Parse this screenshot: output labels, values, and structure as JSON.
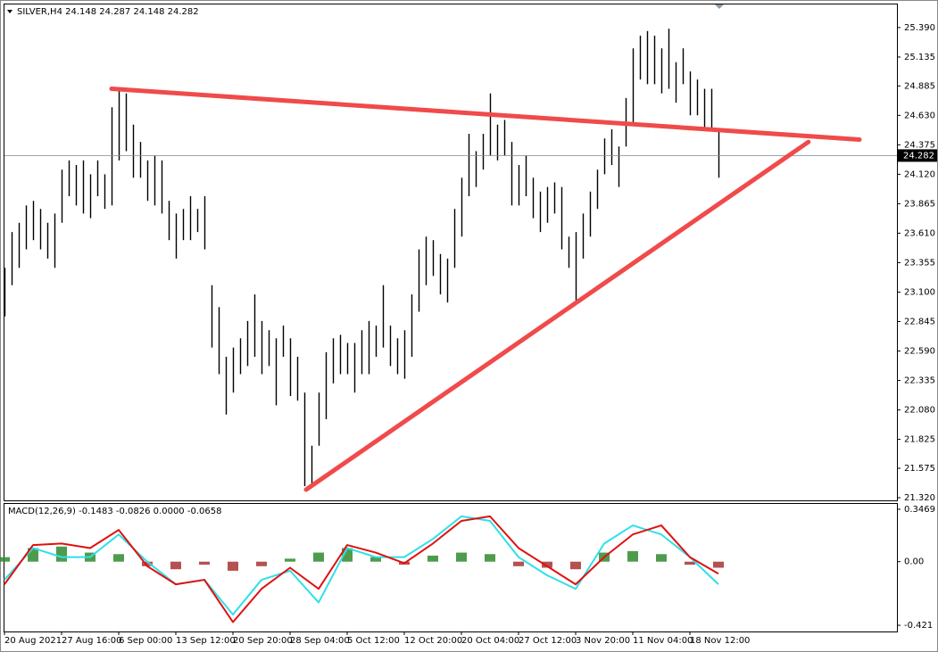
{
  "chart_data": [
    {
      "type": "ohlc",
      "title": "SILVER,H4  24.148 24.287 24.148 24.282",
      "high": [
        23.31,
        23.62,
        23.7,
        23.85,
        23.89,
        23.82,
        23.7,
        23.78,
        24.16,
        24.24,
        24.2,
        24.24,
        24.12,
        24.24,
        24.12,
        24.7,
        24.86,
        24.82,
        24.55,
        24.4,
        24.24,
        24.28,
        24.24,
        23.89,
        23.78,
        23.82,
        23.93,
        23.82,
        23.93,
        23.16,
        22.97,
        22.54,
        22.62,
        22.7,
        22.85,
        23.08,
        22.85,
        22.77,
        22.7,
        22.81,
        22.7,
        22.54,
        22.23,
        21.77,
        22.23,
        22.58,
        22.7,
        22.73,
        22.66,
        22.66,
        22.77,
        22.85,
        22.81,
        23.16,
        22.81,
        22.7,
        22.77,
        23.08,
        23.47,
        23.58,
        23.55,
        23.43,
        23.39,
        23.82,
        24.09,
        24.47,
        24.32,
        24.47,
        24.82,
        24.55,
        24.59,
        24.4,
        24.2,
        24.28,
        24.09,
        23.97,
        24.01,
        24.05,
        24.01,
        23.58,
        23.62,
        23.78,
        23.97,
        24.16,
        24.43,
        24.51,
        24.36,
        24.78,
        25.21,
        25.32,
        25.36,
        25.32,
        25.21,
        25.38,
        25.09,
        25.21,
        25.01,
        24.94,
        24.86,
        24.86,
        24.51
      ],
      "low": [
        22.89,
        23.16,
        23.31,
        23.47,
        23.55,
        23.47,
        23.39,
        23.31,
        23.7,
        23.93,
        23.85,
        23.78,
        23.74,
        23.93,
        23.82,
        23.85,
        24.24,
        24.32,
        24.09,
        24.09,
        23.89,
        23.85,
        23.78,
        23.55,
        23.39,
        23.55,
        23.55,
        23.62,
        23.47,
        22.62,
        22.39,
        22.04,
        22.23,
        22.39,
        22.46,
        22.54,
        22.39,
        22.46,
        22.12,
        22.54,
        22.2,
        22.16,
        21.42,
        21.42,
        21.77,
        22.0,
        22.31,
        22.39,
        22.39,
        22.23,
        22.39,
        22.39,
        22.54,
        22.62,
        22.46,
        22.39,
        22.35,
        22.54,
        22.93,
        23.16,
        23.24,
        23.08,
        23.01,
        23.31,
        23.58,
        23.93,
        24.01,
        24.16,
        24.28,
        24.24,
        24.28,
        23.85,
        23.85,
        23.93,
        23.74,
        23.62,
        23.7,
        23.78,
        23.47,
        23.31,
        23.01,
        23.39,
        23.58,
        23.82,
        24.12,
        24.2,
        24.01,
        24.36,
        24.55,
        24.94,
        24.9,
        24.9,
        24.82,
        24.86,
        24.74,
        24.9,
        24.63,
        24.63,
        24.51,
        24.51,
        24.09
      ],
      "color": "#000000",
      "last_price": 24.282,
      "trendlines": [
        {
          "x": [
            15,
            119.75
          ],
          "y": [
            24.86,
            24.42
          ]
        },
        {
          "x": [
            42.25,
            112.6
          ],
          "y": [
            21.39,
            24.4
          ]
        }
      ],
      "trendline_color": "#f04a4a",
      "xlim": [
        0,
        125
      ],
      "xticks": [
        {
          "value": 0,
          "label": "20 Aug 2021"
        },
        {
          "value": 8,
          "label": "27 Aug 16:00"
        },
        {
          "value": 16,
          "label": "6 Sep 00:00"
        },
        {
          "value": 24,
          "label": "13 Sep 12:00"
        },
        {
          "value": 32,
          "label": "20 Sep 20:00"
        },
        {
          "value": 40,
          "label": "28 Sep 04:00"
        },
        {
          "value": 48,
          "label": "5 Oct 12:00"
        },
        {
          "value": 56,
          "label": "12 Oct 20:00"
        },
        {
          "value": 64,
          "label": "20 Oct 04:00"
        },
        {
          "value": 72,
          "label": "27 Oct 12:00"
        },
        {
          "value": 80,
          "label": "3 Nov 20:00"
        },
        {
          "value": 88,
          "label": "11 Nov 04:00"
        },
        {
          "value": 96,
          "label": "18 Nov 12:00"
        }
      ],
      "ylim": [
        21.297,
        25.59
      ],
      "yticks": [
        {
          "value": 25.39,
          "label": "25.390"
        },
        {
          "value": 25.135,
          "label": "25.135"
        },
        {
          "value": 24.885,
          "label": "24.885"
        },
        {
          "value": 24.63,
          "label": "24.630"
        },
        {
          "value": 24.375,
          "label": "24.375"
        },
        {
          "value": 24.12,
          "label": "24.120"
        },
        {
          "value": 23.865,
          "label": "23.865"
        },
        {
          "value": 23.61,
          "label": "23.610"
        },
        {
          "value": 23.355,
          "label": "23.355"
        },
        {
          "value": 23.1,
          "label": "23.100"
        },
        {
          "value": 22.845,
          "label": "22.845"
        },
        {
          "value": 22.59,
          "label": "22.590"
        },
        {
          "value": 22.335,
          "label": "22.335"
        },
        {
          "value": 22.08,
          "label": "22.080"
        },
        {
          "value": 21.825,
          "label": "21.825"
        },
        {
          "value": 21.575,
          "label": "21.575"
        },
        {
          "value": 21.32,
          "label": "21.320"
        }
      ]
    },
    {
      "type": "macd",
      "title": "MACD(12,26,9) -0.1483 -0.0826 0.0000 -0.0658",
      "x": [
        0,
        4,
        8,
        12,
        16,
        20,
        24,
        28,
        32,
        36,
        40,
        44,
        48,
        52,
        56,
        60,
        64,
        68,
        72,
        76,
        80,
        84,
        88,
        92,
        96,
        100
      ],
      "series": [
        {
          "color": "#2fe0e8",
          "values": [
            -0.12,
            0.09,
            0.03,
            0.03,
            0.18,
            0,
            -0.15,
            -0.12,
            -0.35,
            -0.12,
            -0.06,
            -0.27,
            0.09,
            0.03,
            0.03,
            0.15,
            0.3,
            0.27,
            0.03,
            -0.09,
            -0.18,
            0.12,
            0.24,
            0.18,
            0.03,
            -0.15
          ]
        },
        {
          "color": "#e01010",
          "values": [
            -0.15,
            0.11,
            0.12,
            0.09,
            0.21,
            -0.03,
            -0.15,
            -0.12,
            -0.4,
            -0.18,
            -0.04,
            -0.18,
            0.11,
            0.06,
            -0.01,
            0.12,
            0.27,
            0.3,
            0.09,
            -0.03,
            -0.15,
            0.03,
            0.18,
            0.24,
            0.03,
            -0.08
          ]
        }
      ],
      "histogram": [
        0.03,
        0.09,
        0.1,
        0.06,
        0.05,
        -0.03,
        -0.05,
        -0.02,
        -0.06,
        -0.03,
        0.02,
        0.06,
        0.09,
        0.03,
        -0.02,
        0.04,
        0.06,
        0.05,
        -0.03,
        -0.04,
        -0.05,
        0.06,
        0.07,
        0.05,
        -0.02,
        -0.04
      ],
      "up_color": "#2e8b2e",
      "down_color": "#a83232",
      "ylim": [
        -0.462,
        0.382
      ],
      "yticks": [
        0.3469,
        {
          "value": 0,
          "label": "0.00"
        },
        -0.421
      ]
    }
  ]
}
